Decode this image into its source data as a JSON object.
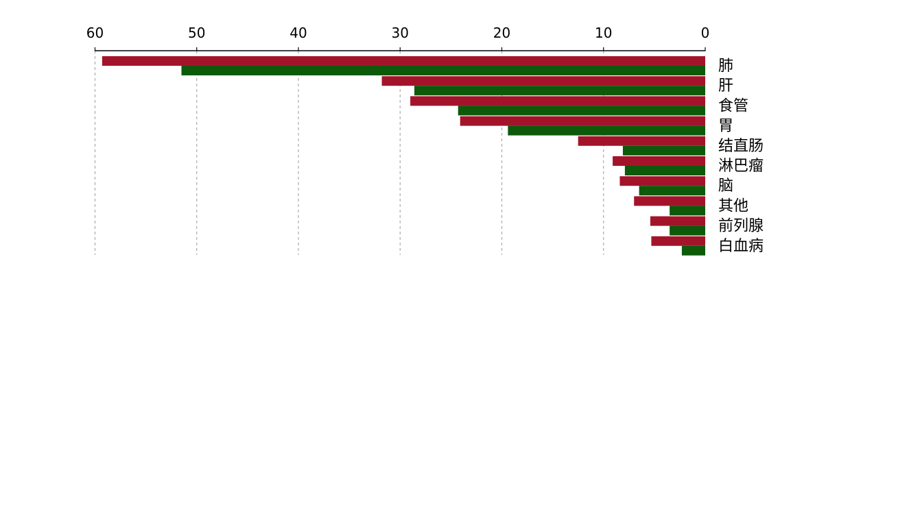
{
  "chart_data": {
    "type": "bar",
    "orientation": "horizontal",
    "x_axis_position": "top",
    "x_direction": "reversed",
    "category_label_side": "right",
    "xlim": [
      0,
      60
    ],
    "xticks": [
      60,
      50,
      40,
      30,
      20,
      10,
      0
    ],
    "grid": true,
    "categories": [
      "肺",
      "肝",
      "食管",
      "胃",
      "结直肠",
      "淋巴瘤",
      "脑",
      "其他",
      "前列腺",
      "白血病"
    ],
    "series": [
      {
        "color": "#a3142b",
        "values": [
          59.3,
          31.8,
          29.0,
          24.1,
          12.5,
          9.1,
          8.4,
          7.0,
          5.4,
          5.3
        ]
      },
      {
        "color": "#0d5a0b",
        "values": [
          51.5,
          28.6,
          24.3,
          19.4,
          8.1,
          7.9,
          6.5,
          3.5,
          3.5,
          2.3
        ]
      }
    ]
  }
}
